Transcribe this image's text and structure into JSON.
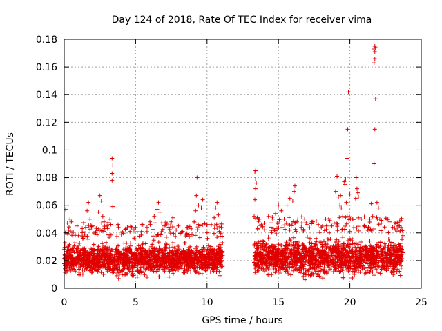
{
  "chart_data": {
    "type": "scatter",
    "title": "Day 124 of 2018, Rate Of TEC Index for receiver vima",
    "xlabel": "GPS time / hours",
    "ylabel": "ROTI / TECUs",
    "xlim": [
      0,
      25
    ],
    "ylim": [
      0,
      0.18
    ],
    "xticks": [
      0,
      5,
      10,
      15,
      20,
      25
    ],
    "xtick_labels": [
      "0",
      "5",
      "10",
      "15",
      "20",
      "25"
    ],
    "yticks": [
      0,
      0.02,
      0.04,
      0.06,
      0.08,
      0.1,
      0.12,
      0.14,
      0.16,
      0.18
    ],
    "ytick_labels": [
      "0",
      "0.02",
      "0.04",
      "0.06",
      "0.08",
      "0.1",
      "0.12",
      "0.14",
      "0.16",
      "0.18"
    ],
    "grid": true,
    "marker": "+",
    "color": "#e00000",
    "data_gap_hours": [
      11.1,
      13.2
    ],
    "series": [
      {
        "name": "ROTI",
        "points": [
          [
            0.1,
            0.057
          ],
          [
            0.3,
            0.042
          ],
          [
            0.4,
            0.05
          ],
          [
            0.5,
            0.048
          ],
          [
            0.9,
            0.045
          ],
          [
            1.0,
            0.038
          ],
          [
            1.3,
            0.036
          ],
          [
            1.5,
            0.044
          ],
          [
            1.6,
            0.056
          ],
          [
            1.7,
            0.062
          ],
          [
            1.8,
            0.05
          ],
          [
            2.0,
            0.045
          ],
          [
            2.2,
            0.04
          ],
          [
            2.4,
            0.055
          ],
          [
            2.5,
            0.067
          ],
          [
            2.6,
            0.063
          ],
          [
            2.7,
            0.052
          ],
          [
            2.8,
            0.048
          ],
          [
            3.0,
            0.045
          ],
          [
            3.2,
            0.05
          ],
          [
            3.4,
            0.059
          ],
          [
            3.35,
            0.078
          ],
          [
            3.35,
            0.083
          ],
          [
            3.4,
            0.089
          ],
          [
            3.35,
            0.094
          ],
          [
            3.8,
            0.044
          ],
          [
            4.0,
            0.039
          ],
          [
            4.3,
            0.043
          ],
          [
            4.6,
            0.041
          ],
          [
            5.0,
            0.044
          ],
          [
            5.5,
            0.046
          ],
          [
            5.8,
            0.044
          ],
          [
            6.0,
            0.048
          ],
          [
            6.3,
            0.052
          ],
          [
            6.5,
            0.057
          ],
          [
            6.6,
            0.062
          ],
          [
            6.7,
            0.055
          ],
          [
            7.0,
            0.045
          ],
          [
            7.5,
            0.048
          ],
          [
            7.6,
            0.051
          ],
          [
            8.0,
            0.045
          ],
          [
            8.3,
            0.041
          ],
          [
            8.6,
            0.044
          ],
          [
            8.9,
            0.043
          ],
          [
            9.1,
            0.048
          ],
          [
            9.2,
            0.056
          ],
          [
            9.25,
            0.067
          ],
          [
            9.3,
            0.08
          ],
          [
            9.4,
            0.06
          ],
          [
            9.6,
            0.058
          ],
          [
            9.7,
            0.064
          ],
          [
            10.0,
            0.046
          ],
          [
            10.3,
            0.046
          ],
          [
            10.5,
            0.051
          ],
          [
            10.6,
            0.058
          ],
          [
            10.7,
            0.062
          ],
          [
            10.8,
            0.053
          ],
          [
            10.9,
            0.047
          ],
          [
            11.0,
            0.044
          ],
          [
            13.3,
            0.052
          ],
          [
            13.35,
            0.064
          ],
          [
            13.4,
            0.072
          ],
          [
            13.45,
            0.076
          ],
          [
            13.4,
            0.079
          ],
          [
            13.35,
            0.084
          ],
          [
            13.4,
            0.085
          ],
          [
            13.6,
            0.05
          ],
          [
            13.8,
            0.046
          ],
          [
            14.0,
            0.047
          ],
          [
            14.3,
            0.052
          ],
          [
            14.6,
            0.05
          ],
          [
            14.8,
            0.054
          ],
          [
            15.0,
            0.06
          ],
          [
            15.2,
            0.056
          ],
          [
            15.4,
            0.05
          ],
          [
            15.6,
            0.06
          ],
          [
            15.8,
            0.065
          ],
          [
            16.0,
            0.063
          ],
          [
            16.1,
            0.07
          ],
          [
            16.15,
            0.074
          ],
          [
            16.3,
            0.048
          ],
          [
            16.6,
            0.044
          ],
          [
            17.0,
            0.046
          ],
          [
            17.4,
            0.048
          ],
          [
            17.8,
            0.046
          ],
          [
            18.0,
            0.044
          ],
          [
            18.3,
            0.05
          ],
          [
            18.6,
            0.049
          ],
          [
            18.9,
            0.047
          ],
          [
            19.0,
            0.07
          ],
          [
            19.1,
            0.081
          ],
          [
            19.2,
            0.066
          ],
          [
            19.3,
            0.06
          ],
          [
            19.35,
            0.067
          ],
          [
            19.4,
            0.058
          ],
          [
            19.5,
            0.052
          ],
          [
            19.6,
            0.077
          ],
          [
            19.65,
            0.075
          ],
          [
            19.7,
            0.079
          ],
          [
            19.75,
            0.062
          ],
          [
            19.8,
            0.094
          ],
          [
            19.85,
            0.115
          ],
          [
            19.9,
            0.142
          ],
          [
            20.0,
            0.068
          ],
          [
            20.2,
            0.05
          ],
          [
            20.4,
            0.065
          ],
          [
            20.45,
            0.08
          ],
          [
            20.5,
            0.072
          ],
          [
            20.55,
            0.069
          ],
          [
            20.6,
            0.066
          ],
          [
            20.8,
            0.05
          ],
          [
            21.0,
            0.045
          ],
          [
            21.2,
            0.044
          ],
          [
            21.4,
            0.05
          ],
          [
            21.5,
            0.061
          ],
          [
            21.6,
            0.052
          ],
          [
            21.7,
            0.09
          ],
          [
            21.75,
            0.115
          ],
          [
            21.8,
            0.137
          ],
          [
            21.7,
            0.163
          ],
          [
            21.75,
            0.166
          ],
          [
            21.75,
            0.171
          ],
          [
            21.7,
            0.173
          ],
          [
            21.75,
            0.175
          ],
          [
            21.8,
            0.174
          ],
          [
            21.9,
            0.062
          ],
          [
            22.0,
            0.058
          ],
          [
            22.2,
            0.047
          ],
          [
            22.6,
            0.05
          ],
          [
            22.8,
            0.048
          ],
          [
            23.0,
            0.044
          ],
          [
            23.2,
            0.042
          ],
          [
            23.4,
            0.045
          ],
          [
            23.6,
            0.044
          ],
          [
            23.7,
            0.038
          ]
        ],
        "bands": [
          {
            "x": [
              0.0,
              11.1
            ],
            "typical_range": [
              0.006,
              0.036
            ],
            "mean": 0.019
          },
          {
            "x": [
              13.3,
              23.7
            ],
            "typical_range": [
              0.005,
              0.04
            ],
            "mean": 0.02
          }
        ]
      }
    ]
  }
}
